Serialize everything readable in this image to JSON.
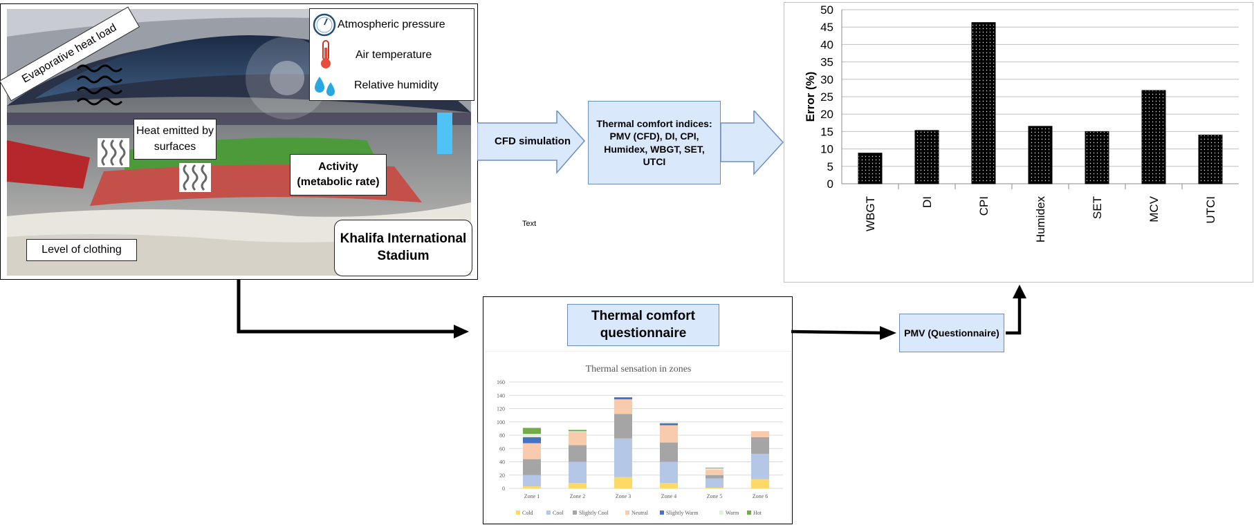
{
  "photo": {
    "evaporative_label": "Evaporative heat load",
    "heat_emitted_label": "Heat emitted by surfaces",
    "activity_label": "Activity (metabolic rate)",
    "clothing_label": "Level of clothing",
    "stadium_label": "Khalifa International Stadium",
    "legend": {
      "pressure": "Atmospheric pressure",
      "temperature": "Air temperature",
      "humidity": "Relative humidity"
    }
  },
  "flow": {
    "cfd_label": "CFD simulation",
    "indices_label": "Thermal comfort indices: PMV (CFD), DI, CPI, Humidex, WBGT, SET, UTCI",
    "stray_text": "Text",
    "questionnaire_title": "Thermal comfort questionnaire",
    "pmv_label": "PMV (Questionnaire)"
  },
  "chart_data": [
    {
      "type": "bar",
      "ylabel": "Error (%)",
      "categories": [
        "WBGT",
        "DI",
        "CPI",
        "Humidex",
        "SET",
        "MCV",
        "UTCI"
      ],
      "values": [
        8.8,
        15.3,
        46.3,
        16.5,
        15.0,
        26.8,
        14.0
      ],
      "ylim": [
        0,
        50
      ],
      "yticks": [
        0,
        5,
        10,
        15,
        20,
        25,
        30,
        35,
        40,
        45,
        50
      ],
      "grid": true,
      "colors": {
        "bar": "#000000",
        "grid": "#bfbfbf"
      }
    },
    {
      "type": "bar",
      "stacked": true,
      "title": "Thermal sensation in zones",
      "categories": [
        "Zone 1",
        "Zone 2",
        "Zone 3",
        "Zone 4",
        "Zone 5",
        "Zone 6"
      ],
      "ylim": [
        0,
        160
      ],
      "yticks": [
        0,
        20,
        40,
        60,
        80,
        100,
        120,
        140,
        160
      ],
      "legend_position": "bottom",
      "series": [
        {
          "name": "Cold",
          "color": "#ffd966",
          "values": [
            3,
            8,
            17,
            8,
            1,
            14
          ]
        },
        {
          "name": "Cool",
          "color": "#b4c7e7",
          "values": [
            17,
            32,
            58,
            32,
            14,
            38
          ]
        },
        {
          "name": "Slightly Cool",
          "color": "#a5a5a5",
          "values": [
            24,
            25,
            37,
            29,
            5,
            25
          ]
        },
        {
          "name": "Neutral",
          "color": "#f8cbad",
          "values": [
            24,
            20,
            22,
            26,
            8,
            9
          ]
        },
        {
          "name": "Slightly Warm",
          "color": "#4472c4",
          "values": [
            9,
            0,
            3,
            3,
            0,
            0
          ]
        },
        {
          "name": "Warm",
          "color": "#e2efda",
          "values": [
            5,
            1,
            0,
            1,
            2,
            0
          ]
        },
        {
          "name": "Hot",
          "color": "#70ad47",
          "values": [
            9,
            2,
            0,
            0,
            1,
            0
          ]
        }
      ]
    }
  ]
}
